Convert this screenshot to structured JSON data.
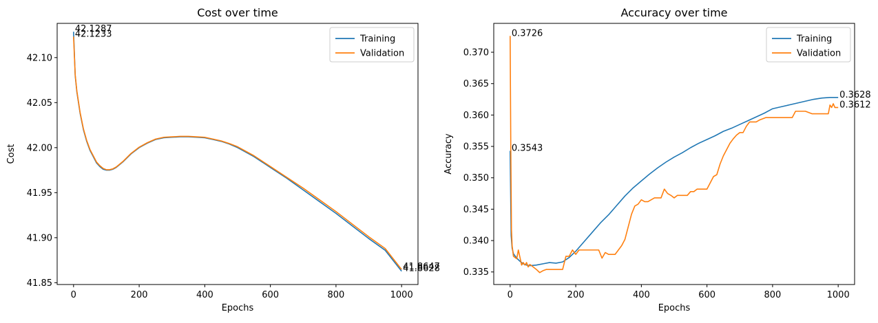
{
  "chart_data": [
    {
      "type": "line",
      "title": "Cost over time",
      "xlabel": "Epochs",
      "ylabel": "Cost",
      "xlim": [
        -50,
        1050
      ],
      "ylim": [
        41.848,
        42.138
      ],
      "xticks": [
        0,
        200,
        400,
        600,
        800,
        1000
      ],
      "xtick_labels": [
        "0",
        "200",
        "400",
        "600",
        "800",
        "1000"
      ],
      "yticks": [
        41.85,
        41.9,
        41.95,
        42.0,
        42.05,
        42.1
      ],
      "ytick_labels": [
        "41.85",
        "41.90",
        "41.95",
        "42.00",
        "42.05",
        "42.10"
      ],
      "legend": "upper right",
      "grid": false,
      "series": [
        {
          "name": "Training",
          "color": "#1f77b4",
          "x": [
            0,
            5,
            10,
            20,
            30,
            40,
            50,
            60,
            70,
            80,
            90,
            100,
            110,
            120,
            130,
            150,
            175,
            200,
            225,
            250,
            275,
            300,
            325,
            350,
            375,
            400,
            425,
            450,
            475,
            500,
            550,
            600,
            650,
            700,
            750,
            800,
            850,
            900,
            950,
            1000
          ],
          "y": [
            42.1287,
            42.08,
            42.062,
            42.038,
            42.02,
            42.007,
            41.997,
            41.99,
            41.983,
            41.979,
            41.976,
            41.975,
            41.975,
            41.976,
            41.978,
            41.984,
            41.993,
            42.0,
            42.005,
            42.009,
            42.011,
            42.0115,
            42.012,
            42.012,
            42.0115,
            42.011,
            42.009,
            42.007,
            42.004,
            42.0,
            41.99,
            41.978,
            41.966,
            41.953,
            41.94,
            41.927,
            41.913,
            41.899,
            41.886,
            41.8628
          ]
        },
        {
          "name": "Validation",
          "color": "#ff7f0e",
          "x": [
            0,
            5,
            10,
            20,
            30,
            40,
            50,
            60,
            70,
            80,
            90,
            100,
            110,
            120,
            130,
            150,
            175,
            200,
            225,
            250,
            275,
            300,
            325,
            350,
            375,
            400,
            425,
            450,
            475,
            500,
            550,
            600,
            650,
            700,
            750,
            800,
            850,
            900,
            950,
            1000
          ],
          "y": [
            42.1233,
            42.081,
            42.063,
            42.039,
            42.021,
            42.008,
            41.998,
            41.991,
            41.984,
            41.98,
            41.977,
            41.9755,
            41.9755,
            41.9765,
            41.9785,
            41.9845,
            41.9935,
            42.0005,
            42.0055,
            42.0095,
            42.0115,
            42.012,
            42.0125,
            42.0125,
            42.012,
            42.0115,
            42.0095,
            42.0075,
            42.0045,
            42.001,
            41.991,
            41.979,
            41.967,
            41.955,
            41.942,
            41.929,
            41.915,
            41.901,
            41.888,
            41.8647
          ]
        }
      ],
      "annotations": [
        {
          "text": "42.1287",
          "x": 0,
          "y": 42.1287
        },
        {
          "text": "42.1233",
          "x": 0,
          "y": 42.1233
        },
        {
          "text": "41.8647",
          "x": 1000,
          "y": 41.8647
        },
        {
          "text": "41.8628",
          "x": 1000,
          "y": 41.8628
        }
      ]
    },
    {
      "type": "line",
      "title": "Accuracy over time",
      "xlabel": "Epochs",
      "ylabel": "Accuracy",
      "xlim": [
        -50,
        1050
      ],
      "ylim": [
        0.333,
        0.3746
      ],
      "xticks": [
        0,
        200,
        400,
        600,
        800,
        1000
      ],
      "xtick_labels": [
        "0",
        "200",
        "400",
        "600",
        "800",
        "1000"
      ],
      "yticks": [
        0.335,
        0.34,
        0.345,
        0.35,
        0.355,
        0.36,
        0.365,
        0.37
      ],
      "ytick_labels": [
        "0.335",
        "0.340",
        "0.345",
        "0.350",
        "0.355",
        "0.360",
        "0.365",
        "0.370"
      ],
      "legend": "upper right",
      "grid": false,
      "series": [
        {
          "name": "Training",
          "color": "#1f77b4",
          "x": [
            0,
            3,
            6,
            10,
            20,
            30,
            40,
            50,
            60,
            80,
            100,
            120,
            140,
            160,
            180,
            200,
            225,
            250,
            275,
            300,
            325,
            350,
            375,
            400,
            425,
            450,
            475,
            500,
            525,
            550,
            575,
            600,
            625,
            650,
            675,
            700,
            725,
            750,
            775,
            800,
            825,
            850,
            875,
            900,
            925,
            950,
            975,
            1000
          ],
          "y": [
            0.3543,
            0.3408,
            0.3388,
            0.3379,
            0.3372,
            0.3367,
            0.3363,
            0.3361,
            0.336,
            0.3361,
            0.3363,
            0.3365,
            0.3364,
            0.3366,
            0.3373,
            0.3383,
            0.3398,
            0.3413,
            0.3428,
            0.3441,
            0.3456,
            0.3471,
            0.3484,
            0.3495,
            0.3506,
            0.3516,
            0.3525,
            0.3533,
            0.354,
            0.3548,
            0.3555,
            0.3561,
            0.3567,
            0.3574,
            0.3579,
            0.3585,
            0.3591,
            0.3597,
            0.3603,
            0.361,
            0.3613,
            0.3616,
            0.3619,
            0.3622,
            0.3625,
            0.3627,
            0.3628,
            0.3628
          ]
        },
        {
          "name": "Validation",
          "color": "#ff7f0e",
          "x": [
            0,
            2,
            4,
            6,
            10,
            15,
            20,
            25,
            30,
            35,
            40,
            45,
            50,
            55,
            60,
            70,
            80,
            90,
            100,
            110,
            120,
            130,
            140,
            150,
            160,
            170,
            180,
            190,
            200,
            210,
            225,
            250,
            270,
            280,
            290,
            300,
            310,
            320,
            330,
            340,
            350,
            360,
            370,
            380,
            390,
            400,
            410,
            420,
            430,
            440,
            450,
            460,
            470,
            480,
            490,
            500,
            510,
            520,
            530,
            540,
            550,
            560,
            570,
            580,
            590,
            600,
            610,
            620,
            630,
            640,
            650,
            660,
            670,
            680,
            690,
            700,
            710,
            720,
            730,
            740,
            750,
            760,
            780,
            800,
            820,
            840,
            860,
            870,
            880,
            900,
            920,
            940,
            960,
            970,
            975,
            980,
            985,
            990,
            1000
          ],
          "y": [
            0.3726,
            0.3545,
            0.3418,
            0.3392,
            0.3375,
            0.3373,
            0.3371,
            0.3385,
            0.3373,
            0.3361,
            0.3365,
            0.3361,
            0.3365,
            0.3358,
            0.3362,
            0.3358,
            0.3354,
            0.3349,
            0.3352,
            0.3354,
            0.3354,
            0.3354,
            0.3354,
            0.3354,
            0.3354,
            0.3375,
            0.3375,
            0.3385,
            0.3378,
            0.3385,
            0.3385,
            0.3385,
            0.3385,
            0.3372,
            0.3381,
            0.3378,
            0.3378,
            0.3378,
            0.3385,
            0.3392,
            0.3402,
            0.3422,
            0.3442,
            0.3455,
            0.3458,
            0.3465,
            0.3462,
            0.3462,
            0.3465,
            0.3468,
            0.3468,
            0.3468,
            0.3482,
            0.3475,
            0.3472,
            0.3468,
            0.3472,
            0.3472,
            0.3472,
            0.3472,
            0.3478,
            0.3478,
            0.3482,
            0.3482,
            0.3482,
            0.3482,
            0.3492,
            0.3502,
            0.3505,
            0.3522,
            0.3535,
            0.3545,
            0.3555,
            0.3562,
            0.3568,
            0.3572,
            0.3572,
            0.3582,
            0.3589,
            0.3589,
            0.3589,
            0.3592,
            0.3596,
            0.3596,
            0.3596,
            0.3596,
            0.3596,
            0.3606,
            0.3606,
            0.3606,
            0.3602,
            0.3602,
            0.3602,
            0.3602,
            0.3616,
            0.3612,
            0.3618,
            0.3612,
            0.3612
          ]
        }
      ],
      "annotations": [
        {
          "text": "0.3726",
          "x": 0,
          "y": 0.3726
        },
        {
          "text": "0.3543",
          "x": 0,
          "y": 0.3543
        },
        {
          "text": "0.3628",
          "x": 1000,
          "y": 0.3628
        },
        {
          "text": "0.3612",
          "x": 1000,
          "y": 0.3612
        }
      ]
    }
  ]
}
